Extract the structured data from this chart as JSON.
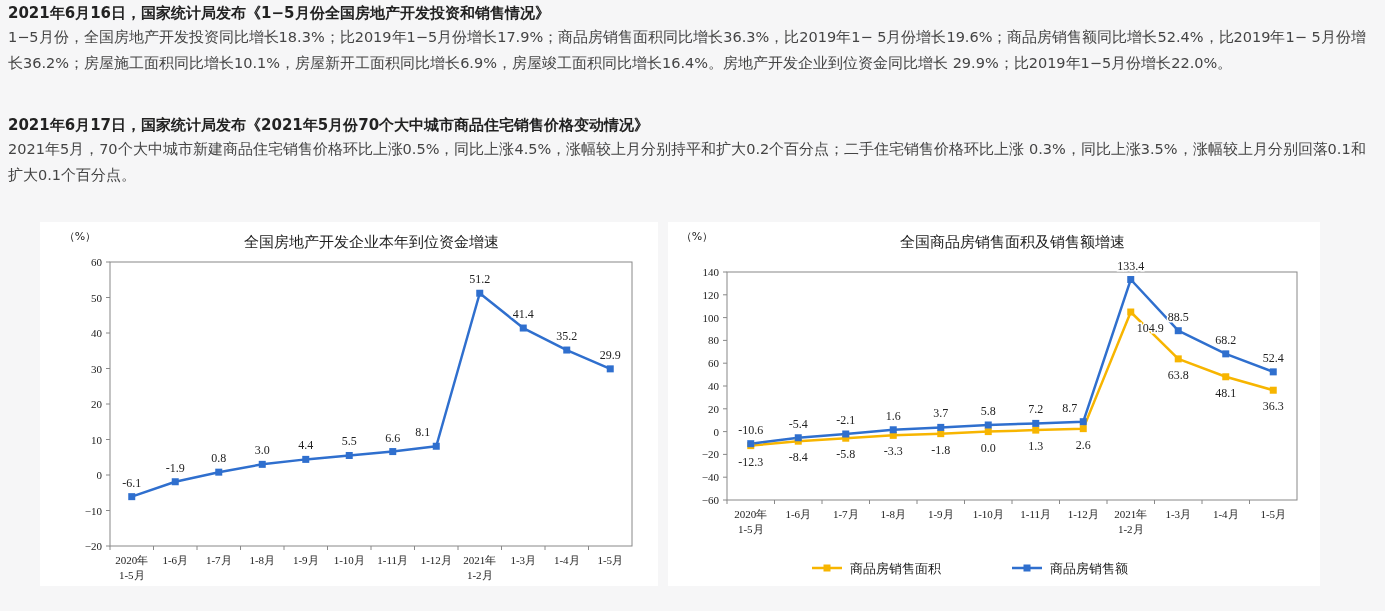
{
  "chart_data": [
    {
      "type": "other",
      "title": "2021年6月16日，国家统计局发布《1−5月份全国房地产开发投资和销售情况》",
      "annotations": [
        "1−5月份，全国房地产开发投资同比增长18.3%；比2019年1−5月份增长17.9%；商品房销售面积同比增长36.3%，比2019年1− 5月份增长19.6%；商品房销售额同比增长52.4%，比2019年1− 5月份增长36.2%；房屋施工面积同比增长10.1%，房屋新开工面积同比增长6.9%，房屋竣工面积同比增长16.4%。房地产开发企业到位资金同比增长 29.9%；比2019年1−5月份增长22.0%。"
      ]
    },
    {
      "type": "other",
      "title": "2021年6月17日，国家统计局发布《2021年5月份70个大中城市商品住宅销售价格变动情况》",
      "annotations": [
        "2021年5月，70个大中城市新建商品住宅销售价格环比上涨0.5%，同比上涨4.5%，涨幅较上月分别持平和扩大0.2个百分点；二手住宅销售价格环比上涨 0.3%，同比上涨3.5%，涨幅较上月分别回落0.1和扩大0.1个百分点。"
      ]
    },
    {
      "type": "line",
      "title": "全国房地产开发企业本年到位资金增速",
      "ylabel": "（%）",
      "marker": "square",
      "categories": [
        "2020年\n1-5月",
        "1-6月",
        "1-7月",
        "1-8月",
        "1-9月",
        "1-10月",
        "1-11月",
        "1-12月",
        "2021年\n1-2月",
        "1-3月",
        "1-4月",
        "1-5月"
      ],
      "series": [
        {
          "color": "#2f6fce",
          "values": [
            -6.1,
            -1.9,
            0.8,
            3.0,
            4.4,
            5.5,
            6.6,
            8.1,
            51.2,
            41.4,
            35.2,
            29.9
          ],
          "value_labels": [
            "-6.1",
            "-1.9",
            "0.8",
            "3.0",
            "4.4",
            "5.5",
            "6.6",
            "8.1",
            "51.2",
            "41.4",
            "35.2",
            "29.9"
          ]
        }
      ],
      "ylim": [
        -20,
        60
      ],
      "yticks": [
        -20,
        -10,
        0,
        10,
        20,
        30,
        40,
        50,
        60
      ]
    },
    {
      "type": "line",
      "title": "全国商品房销售面积及销售额增速",
      "ylabel": "（%）",
      "marker": "square",
      "legend": "bottom",
      "categories": [
        "2020年\n1-5月",
        "1-6月",
        "1-7月",
        "1-8月",
        "1-9月",
        "1-10月",
        "1-11月",
        "1-12月",
        "2021年\n1-2月",
        "1-3月",
        "1-4月",
        "1-5月"
      ],
      "series": [
        {
          "name": "商品房销售面积",
          "color": "#f7b500",
          "values": [
            -12.3,
            -8.4,
            -5.8,
            -3.3,
            -1.8,
            0.0,
            1.3,
            2.6,
            104.9,
            63.8,
            48.1,
            36.3
          ],
          "value_labels": [
            "-12.3",
            "-8.4",
            "-5.8",
            "-3.3",
            "-1.8",
            "0.0",
            "1.3",
            "2.6",
            "104.9",
            "63.8",
            "48.1",
            "36.3"
          ]
        },
        {
          "name": "商品房销售额",
          "color": "#2f6fce",
          "values": [
            -10.6,
            -5.4,
            -2.1,
            1.6,
            3.7,
            5.8,
            7.2,
            8.7,
            133.4,
            88.5,
            68.2,
            52.4
          ],
          "value_labels": [
            "-10.6",
            "-5.4",
            "-2.1",
            "1.6",
            "3.7",
            "5.8",
            "7.2",
            "8.7",
            "133.4",
            "88.5",
            "68.2",
            "52.4"
          ]
        }
      ],
      "ylim": [
        -60,
        140
      ],
      "yticks": [
        -60,
        -40,
        -20,
        0,
        20,
        40,
        60,
        80,
        100,
        120,
        140
      ]
    }
  ]
}
